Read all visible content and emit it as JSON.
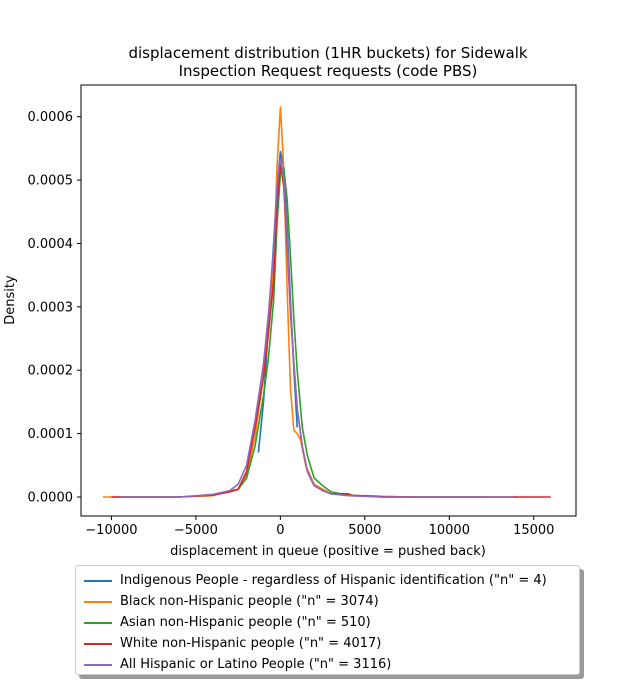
{
  "chart_data": {
    "type": "line",
    "title": "displacement distribution (1HR buckets) for Sidewalk\nInspection Request requests (code PBS)",
    "xlabel": "displacement in queue (positive = pushed back)",
    "ylabel": "Density",
    "xlim": [
      -11800,
      17500
    ],
    "ylim": [
      -3e-05,
      0.00065
    ],
    "xticks": [
      -10000,
      -5000,
      0,
      5000,
      10000,
      15000
    ],
    "xtick_labels": [
      "−10000",
      "−5000",
      "0",
      "5000",
      "10000",
      "15000"
    ],
    "yticks": [
      0,
      0.0001,
      0.0002,
      0.0003,
      0.0004,
      0.0005,
      0.0006
    ],
    "ytick_labels": [
      "0.0000",
      "0.0001",
      "0.0002",
      "0.0003",
      "0.0004",
      "0.0005",
      "0.0006"
    ],
    "grid": false,
    "legend_position": "below",
    "series": [
      {
        "name": "Indigenous People - regardless of Hispanic identification (\"n\" = 4)",
        "color": "#1f77b4",
        "x": [
          -1300,
          -1000,
          -700,
          -400,
          -200,
          0,
          200,
          400,
          600,
          800,
          1000
        ],
        "y": [
          7e-05,
          0.00015,
          0.00027,
          0.0004,
          0.00049,
          0.000545,
          0.00052,
          0.00043,
          0.00031,
          0.0002,
          0.00011
        ]
      },
      {
        "name": "Black non-Hispanic people (\"n\" = 3074)",
        "color": "#ff7f0e",
        "x": [
          -10500,
          -8000,
          -6000,
          -4000,
          -3000,
          -2500,
          -2000,
          -1500,
          -1000,
          -700,
          -400,
          -200,
          0,
          200,
          400,
          600,
          800,
          1000,
          1200,
          1500,
          2000,
          3000,
          4000,
          6000,
          8000,
          10000,
          12000,
          14000
        ],
        "y": [
          0,
          0,
          0,
          2e-06,
          1e-05,
          1.2e-05,
          3.5e-05,
          9.5e-05,
          0.00019,
          0.00026,
          0.00036,
          0.00052,
          0.000615,
          0.00052,
          0.00033,
          0.00017,
          0.000105,
          0.0001,
          9e-05,
          5e-05,
          2e-05,
          5e-06,
          3e-06,
          0,
          0,
          0,
          0,
          0
        ]
      },
      {
        "name": "Asian non-Hispanic people (\"n\" = 510)",
        "color": "#2ca02c",
        "x": [
          -9500,
          -6000,
          -4000,
          -3000,
          -2500,
          -2000,
          -1500,
          -1000,
          -700,
          -400,
          -200,
          0,
          200,
          400,
          600,
          800,
          1000,
          1300,
          1600,
          2000,
          2500,
          3000,
          4000,
          6000,
          9000,
          12000
        ],
        "y": [
          0,
          0,
          3e-06,
          8e-06,
          1.2e-05,
          3e-05,
          8e-05,
          0.00016,
          0.00022,
          0.00031,
          0.00043,
          0.00051,
          0.00052,
          0.00047,
          0.00038,
          0.00028,
          0.0002,
          0.00011,
          6.5e-05,
          3e-05,
          1.8e-05,
          8e-06,
          3e-06,
          0,
          0,
          0
        ]
      },
      {
        "name": "White non-Hispanic people (\"n\" = 4017)",
        "color": "#d62728",
        "x": [
          -10000,
          -8000,
          -6000,
          -4000,
          -3000,
          -2500,
          -2000,
          -1500,
          -1000,
          -700,
          -400,
          -200,
          0,
          200,
          400,
          600,
          800,
          1000,
          1300,
          1600,
          2000,
          2500,
          3000,
          3500,
          4000,
          4300,
          5000,
          6000,
          8000,
          10000,
          12000,
          14000,
          16000
        ],
        "y": [
          0,
          0,
          0,
          3e-06,
          8e-06,
          1.2e-05,
          4e-05,
          0.00011,
          0.00019,
          0.00026,
          0.00034,
          0.00046,
          0.000525,
          0.00049,
          0.0004,
          0.00029,
          0.00021,
          0.00014,
          8e-05,
          4e-05,
          1.8e-05,
          1e-05,
          5e-06,
          5e-06,
          5e-06,
          2e-06,
          2e-06,
          1e-06,
          0,
          0,
          0,
          0,
          0
        ]
      },
      {
        "name": "All Hispanic or Latino People (\"n\" = 3116)",
        "color": "#9467bd",
        "x": [
          -9500,
          -6000,
          -4000,
          -3000,
          -2500,
          -2000,
          -1500,
          -1000,
          -700,
          -400,
          -200,
          0,
          200,
          400,
          600,
          800,
          1000,
          1300,
          1600,
          2000,
          2500,
          3000,
          4000,
          6000,
          9000,
          12000,
          13800
        ],
        "y": [
          0,
          0,
          4e-06,
          1e-05,
          2e-05,
          5e-05,
          0.00012,
          0.00021,
          0.00029,
          0.00039,
          0.00049,
          0.000535,
          0.0005,
          0.00041,
          0.0003,
          0.00021,
          0.00014,
          8e-05,
          4e-05,
          1.8e-05,
          1e-05,
          5e-06,
          2e-06,
          0,
          0,
          0,
          0
        ]
      }
    ]
  }
}
